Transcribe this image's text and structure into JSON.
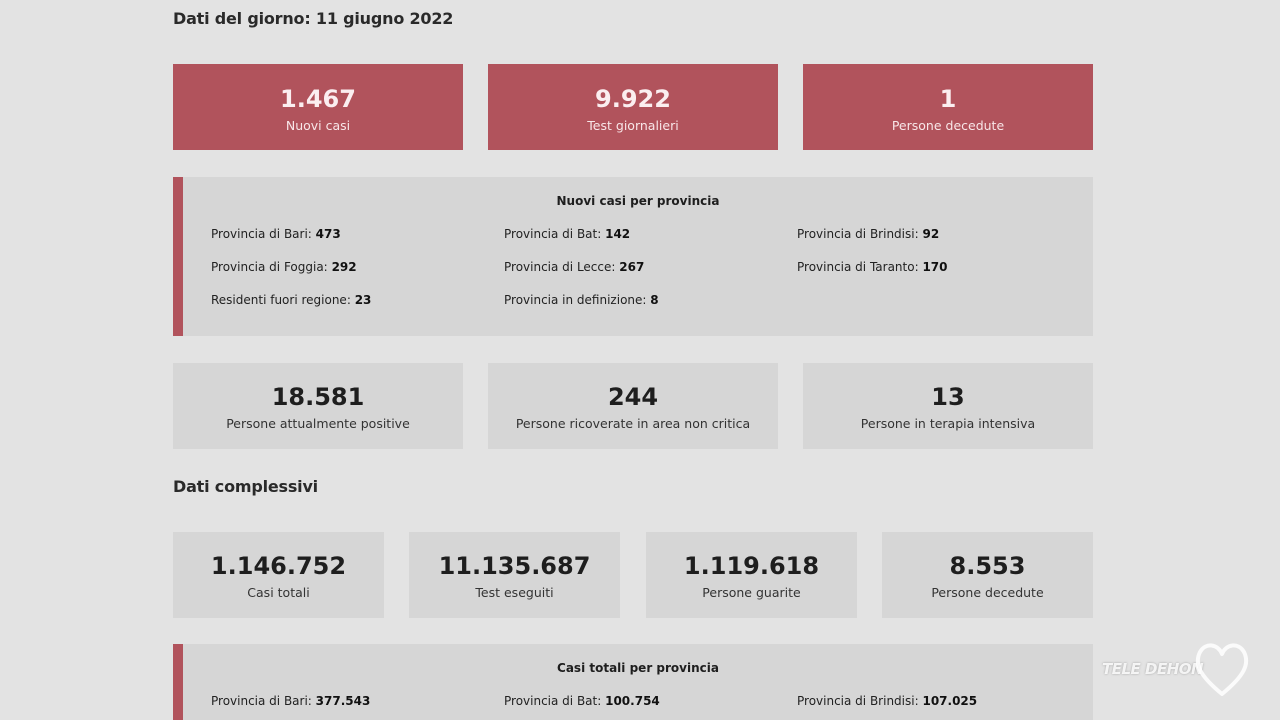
{
  "daily": {
    "title": "Dati del giorno: 11 giugno 2022",
    "summary": [
      {
        "value": "1.467",
        "label": "Nuovi casi"
      },
      {
        "value": "9.922",
        "label": "Test giornalieri"
      },
      {
        "value": "1",
        "label": "Persone decedute"
      }
    ],
    "provinces": {
      "title": "Nuovi casi per provincia",
      "items": [
        {
          "label": "Provincia di Bari:",
          "value": "473"
        },
        {
          "label": "Provincia di Bat:",
          "value": "142"
        },
        {
          "label": "Provincia di Brindisi:",
          "value": "92"
        },
        {
          "label": "Provincia di Foggia:",
          "value": "292"
        },
        {
          "label": "Provincia di Lecce:",
          "value": "267"
        },
        {
          "label": "Provincia di Taranto:",
          "value": "170"
        },
        {
          "label": "Residenti fuori regione:",
          "value": "23"
        },
        {
          "label": "Provincia in definizione:",
          "value": "8"
        }
      ]
    },
    "status": [
      {
        "value": "18.581",
        "label": "Persone attualmente positive"
      },
      {
        "value": "244",
        "label": "Persone ricoverate in area non critica"
      },
      {
        "value": "13",
        "label": "Persone in terapia intensiva"
      }
    ]
  },
  "total": {
    "title": "Dati complessivi",
    "summary": [
      {
        "value": "1.146.752",
        "label": "Casi totali"
      },
      {
        "value": "11.135.687",
        "label": "Test eseguiti"
      },
      {
        "value": "1.119.618",
        "label": "Persone guarite"
      },
      {
        "value": "8.553",
        "label": "Persone decedute"
      }
    ],
    "provinces": {
      "title": "Casi totali per provincia",
      "items": [
        {
          "label": "Provincia di Bari:",
          "value": "377.543"
        },
        {
          "label": "Provincia di Bat:",
          "value": "100.754"
        },
        {
          "label": "Provincia di Brindisi:",
          "value": "107.025"
        }
      ]
    }
  },
  "logo": {
    "text": "TELE DEHON",
    "icon": "heart-icon"
  },
  "colors": {
    "accent": "#b1535c",
    "card_grey": "#d6d6d6",
    "background": "#e3e3e3"
  }
}
